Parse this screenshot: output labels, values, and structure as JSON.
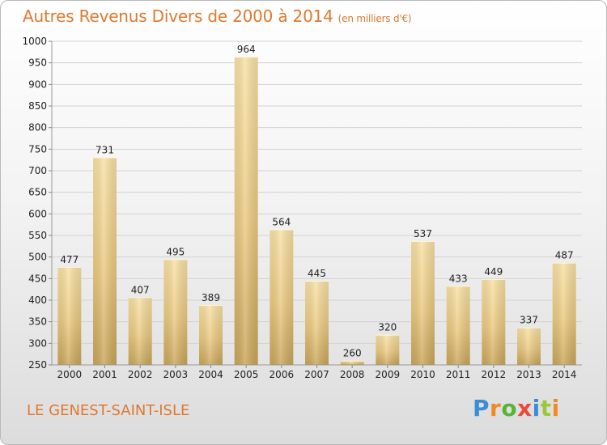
{
  "header": {
    "title": "Autres Revenus Divers de 2000 à 2014",
    "subtitle": "(en milliers d'€)"
  },
  "footer": {
    "town": "LE GENEST-SAINT-ISLE",
    "logo_parts": [
      "P",
      "r",
      "o",
      "x",
      "i",
      "t",
      "i"
    ]
  },
  "chart_data": {
    "type": "bar",
    "title": "Autres Revenus Divers de 2000 à 2014",
    "subtitle": "(en milliers d'€)",
    "xlabel": "",
    "ylabel": "",
    "categories": [
      "2000",
      "2001",
      "2002",
      "2003",
      "2004",
      "2005",
      "2006",
      "2007",
      "2008",
      "2009",
      "2010",
      "2011",
      "2012",
      "2013",
      "2014"
    ],
    "values": [
      477,
      731,
      407,
      495,
      389,
      964,
      564,
      445,
      260,
      320,
      537,
      433,
      449,
      337,
      487
    ],
    "ylim": [
      250,
      1000
    ],
    "yticks": [
      250,
      300,
      350,
      400,
      450,
      500,
      550,
      600,
      650,
      700,
      750,
      800,
      850,
      900,
      950,
      1000
    ],
    "grid": true,
    "legend": "none",
    "colors": {
      "bar_light": "#f7dc98",
      "bar_dark": "#c8a658",
      "bar_mid": "#e9c980",
      "grid": "#d2d2d2",
      "axis_text": "#222222"
    }
  }
}
